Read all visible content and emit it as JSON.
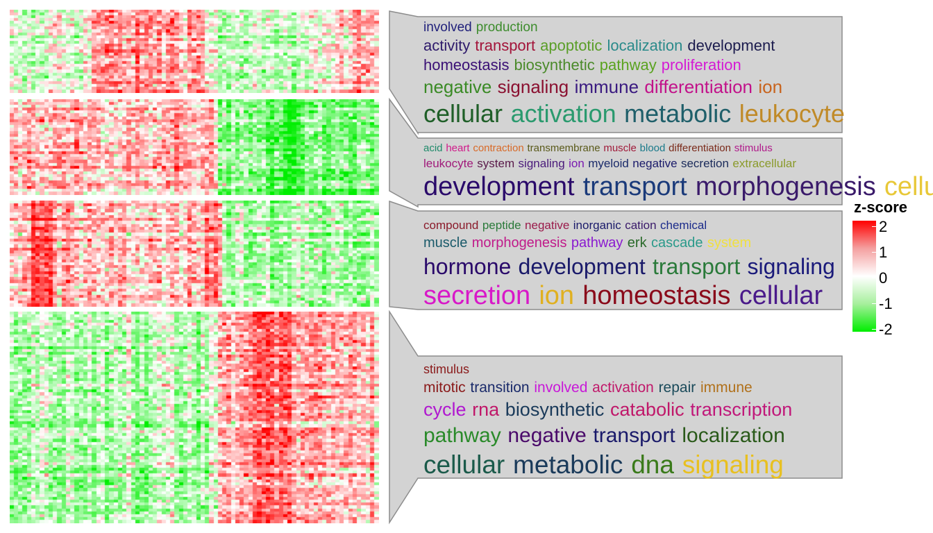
{
  "legend": {
    "title": "z-score",
    "ticks": [
      "2",
      "1",
      "0",
      "-1",
      "-2"
    ],
    "colors": {
      "high": "#ff0000",
      "mid": "#ffffff",
      "low": "#00ee00"
    }
  },
  "panel_fill": "#d3d3d3",
  "clusters": [
    {
      "name": "cluster-1",
      "lines": [
        [
          [
            "involved",
            "#1f1f7a"
          ],
          [
            "production",
            "#3d8c2d"
          ]
        ],
        [
          [
            "activity",
            "#2e1a6b"
          ],
          [
            "transport",
            "#a3143a"
          ],
          [
            "apoptotic",
            "#5a9e28"
          ],
          [
            "localization",
            "#2a8a8a"
          ],
          [
            "development",
            "#1c1c4e"
          ]
        ],
        [
          [
            "homeostasis",
            "#3a1075"
          ],
          [
            "biosynthetic",
            "#4a8a2a"
          ],
          [
            "pathway",
            "#5aa31f"
          ],
          [
            "proliferation",
            "#d41ad4"
          ]
        ],
        [
          [
            "negative",
            "#3a8a25"
          ],
          [
            "signaling",
            "#8a1030"
          ],
          [
            "immune",
            "#3a1a80"
          ],
          [
            "differentiation",
            "#c2128a"
          ],
          [
            "ion",
            "#c8641e"
          ]
        ],
        [
          [
            "cellular",
            "#1f5f28"
          ],
          [
            "activation",
            "#2a9a6e"
          ],
          [
            "metabolic",
            "#1f5f6a"
          ],
          [
            "leukocyte",
            "#c08a28"
          ]
        ]
      ]
    },
    {
      "name": "cluster-2",
      "lines": [
        [
          [
            "acid",
            "#1f8a6a"
          ],
          [
            "heart",
            "#d01a8a"
          ],
          [
            "contraction",
            "#d86a28"
          ],
          [
            "transmembrane",
            "#5a5a1a"
          ],
          [
            "muscle",
            "#a01a3a"
          ],
          [
            "blood",
            "#1a7a8a"
          ],
          [
            "differentiation",
            "#7a2a1a"
          ],
          [
            "stimulus",
            "#b01a8a"
          ]
        ],
        [
          [
            "leukocyte",
            "#a01a7a"
          ],
          [
            "system",
            "#5a1a4a"
          ],
          [
            "signaling",
            "#4a1a7a"
          ],
          [
            "ion",
            "#7a1ab0"
          ],
          [
            "myeloid",
            "#1a2a6a"
          ],
          [
            "negative",
            "#1a1a6a"
          ],
          [
            "secretion",
            "#1a2a5a"
          ],
          [
            "extracellular",
            "#8a9a2a"
          ]
        ],
        [
          [
            "development",
            "#2a0a6a"
          ],
          [
            "transport",
            "#1a3a7a"
          ],
          [
            "morphogenesis",
            "#3a1a6a"
          ],
          [
            "cellular",
            "#e8c838"
          ]
        ]
      ]
    },
    {
      "name": "cluster-3",
      "lines": [
        [
          [
            "compound",
            "#8a1a2a"
          ],
          [
            "peptide",
            "#2a7a3a"
          ],
          [
            "negative",
            "#9a1a4a"
          ],
          [
            "inorganic",
            "#1a1a6a"
          ],
          [
            "cation",
            "#3a1a6a"
          ],
          [
            "chemical",
            "#1a2a8a"
          ]
        ],
        [
          [
            "muscle",
            "#1a5a6a"
          ],
          [
            "morphogenesis",
            "#c01a8a"
          ],
          [
            "pathway",
            "#8a1ad0"
          ],
          [
            "erk",
            "#2a6a2a"
          ],
          [
            "cascade",
            "#2a9a8a"
          ],
          [
            "system",
            "#f0e040"
          ]
        ],
        [
          [
            "hormone",
            "#2a0a6a"
          ],
          [
            "development",
            "#1a1a6a"
          ],
          [
            "transport",
            "#2a7a3a"
          ],
          [
            "signaling",
            "#1a1a7a"
          ]
        ],
        [
          [
            "secretion",
            "#d818c8"
          ],
          [
            "ion",
            "#e0b020"
          ],
          [
            "homeostasis",
            "#8a0a1a"
          ],
          [
            "cellular",
            "#4a1a8a"
          ]
        ]
      ]
    },
    {
      "name": "cluster-4",
      "lines": [
        [
          [
            "stimulus",
            "#8a1a1a"
          ]
        ],
        [
          [
            "mitotic",
            "#8a1a1a"
          ],
          [
            "transition",
            "#1a2a6a"
          ],
          [
            "involved",
            "#c818d8"
          ],
          [
            "activation",
            "#c0186a"
          ],
          [
            "repair",
            "#1a4a5a"
          ],
          [
            "immune",
            "#b0701a"
          ]
        ],
        [
          [
            "cycle",
            "#b018d0"
          ],
          [
            "rna",
            "#c0186a"
          ],
          [
            "biosynthetic",
            "#1a3a5a"
          ],
          [
            "catabolic",
            "#c0186a"
          ],
          [
            "transcription",
            "#c0187a"
          ]
        ],
        [
          [
            "pathway",
            "#2a8a2a"
          ],
          [
            "negative",
            "#4a0a6a"
          ],
          [
            "transport",
            "#1a1a6a"
          ],
          [
            "localization",
            "#2a5a1a"
          ]
        ],
        [
          [
            "cellular",
            "#1a5a4a"
          ],
          [
            "metabolic",
            "#1a3a5a"
          ],
          [
            "dna",
            "#3a7a1a"
          ],
          [
            "signaling",
            "#e8c020"
          ]
        ]
      ]
    }
  ]
}
